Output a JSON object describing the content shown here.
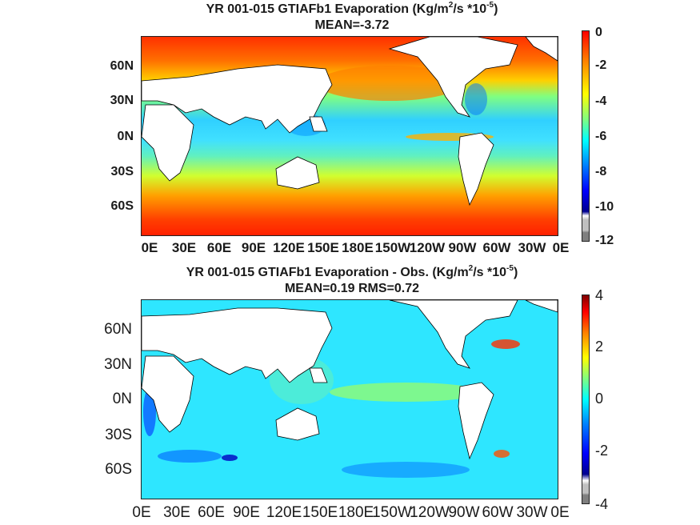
{
  "panel1": {
    "title_prefix": "YR 001-015 GTIAFb1  Evaporation (Kg/m",
    "title_sup1": "2",
    "title_mid": "/s *10",
    "title_sup2": "-5",
    "title_suffix": ")",
    "subtitle": "MEAN=-3.72",
    "y_ticks": [
      "60N",
      "30N",
      "0N",
      "30S",
      "60S"
    ],
    "x_ticks": [
      "0E",
      "30E",
      "60E",
      "90E",
      "120E",
      "150E",
      "180E",
      "150W",
      "120W",
      "90W",
      "60W",
      "30W",
      "0E"
    ],
    "colorbar_ticks": [
      "0",
      "-2",
      "-4",
      "-6",
      "-8",
      "-10",
      "-12"
    ]
  },
  "panel2": {
    "title_prefix": "YR 001-015 GTIAFb1 Evaporation - Obs. (Kg/m",
    "title_sup1": "2",
    "title_mid": "/s *10",
    "title_sup2": "-5",
    "title_suffix": ")",
    "subtitle": "MEAN=0.19   RMS=0.72",
    "y_ticks": [
      "60N",
      "30N",
      "0N",
      "30S",
      "60S"
    ],
    "x_ticks": [
      "0E",
      "30E",
      "60E",
      "90E",
      "120E",
      "150E",
      "180E",
      "150W",
      "120W",
      "90W",
      "60W",
      "30W",
      "0E"
    ],
    "colorbar_ticks": [
      "4",
      "2",
      "0",
      "-2",
      "-4"
    ]
  },
  "colors": {
    "jet": [
      "#00008f",
      "#0000ff",
      "#0080ff",
      "#00ffff",
      "#80ff80",
      "#ffff00",
      "#ff8000",
      "#ff0000",
      "#800000"
    ],
    "land": "#ffffff",
    "missing": "#bfbfbf"
  }
}
